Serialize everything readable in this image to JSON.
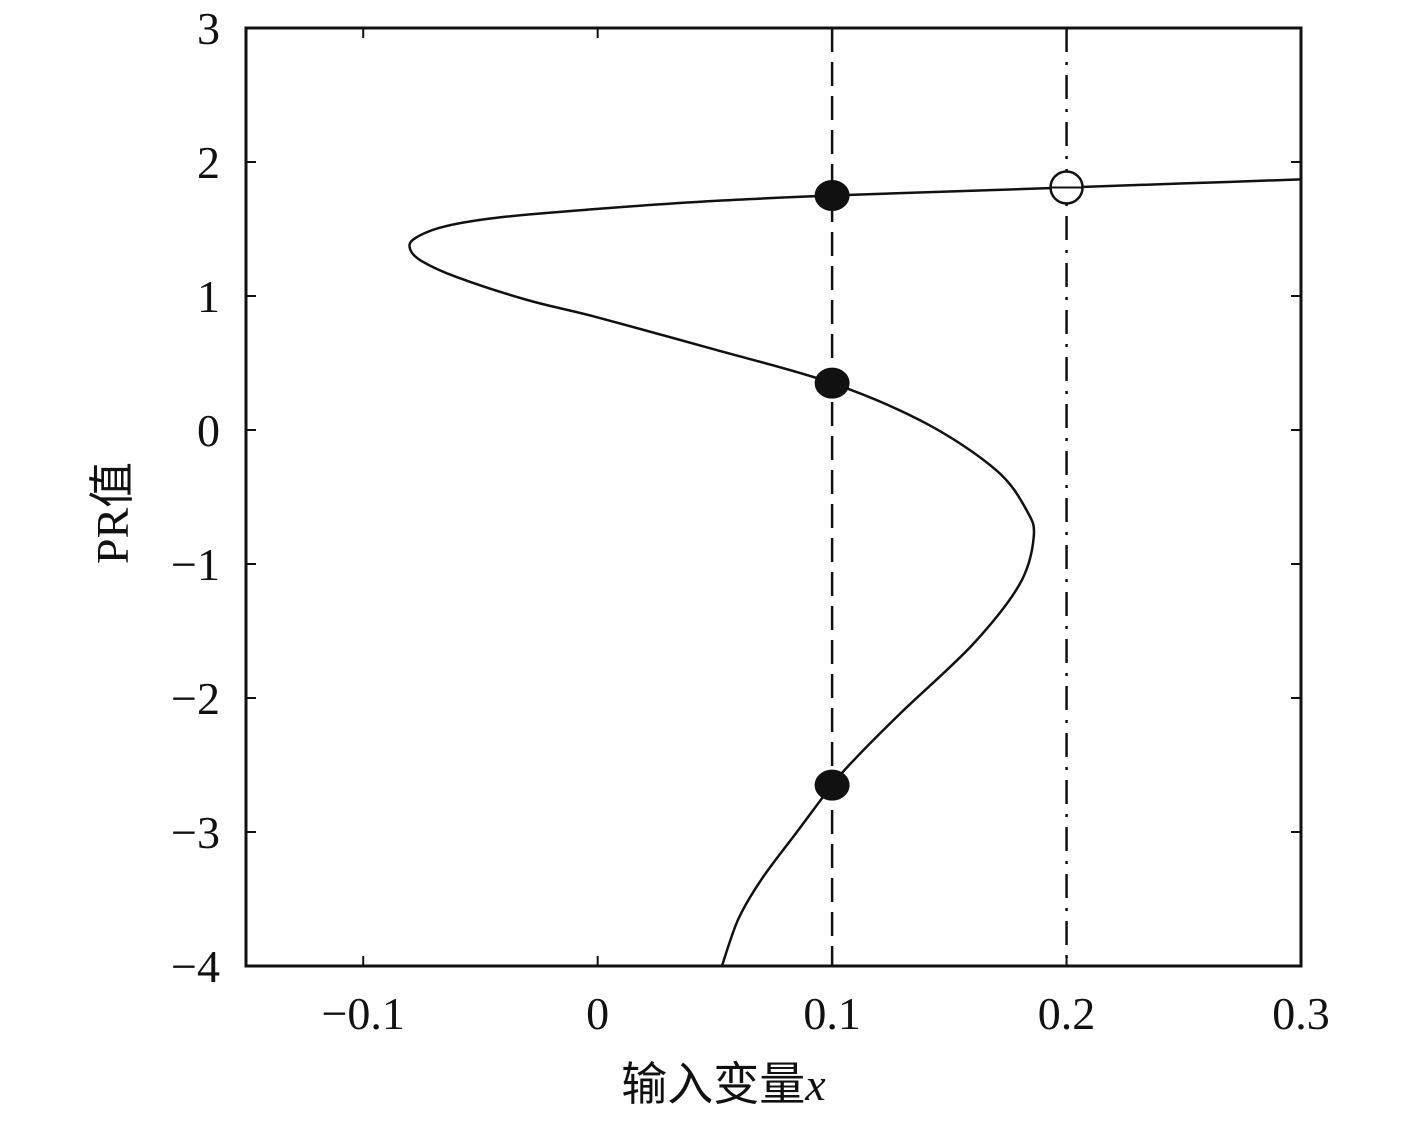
{
  "chart_data": {
    "type": "line",
    "title": "",
    "xlabel": "输入变量",
    "xlabel_var": "x",
    "ylabel": "PR值",
    "xlim": [
      -0.15,
      0.3
    ],
    "ylim": [
      -4,
      3
    ],
    "x_ticks": [
      -0.1,
      0,
      0.1,
      0.2,
      0.3
    ],
    "x_tick_labels": [
      "−0.1",
      "0",
      "0.1",
      "0.2",
      "0.3"
    ],
    "y_ticks": [
      -4,
      -3,
      -2,
      -1,
      0,
      1,
      2,
      3
    ],
    "y_tick_labels": [
      "−4",
      "−3",
      "−2",
      "−1",
      "0",
      "1",
      "2",
      "3"
    ],
    "grid": false,
    "series": [
      {
        "style": "solid",
        "x": [
          0.3,
          0.25,
          0.2,
          0.15,
          0.1,
          0.05,
          0.0,
          -0.04,
          -0.065,
          -0.078,
          -0.08,
          -0.075,
          -0.06,
          -0.03,
          0.0,
          0.05,
          0.1,
          0.14,
          0.17,
          0.183,
          0.186,
          0.18,
          0.16,
          0.13,
          0.11,
          0.1,
          0.085,
          0.07,
          0.06,
          0.053
        ],
        "y": [
          1.87,
          1.84,
          1.81,
          1.78,
          1.75,
          1.71,
          1.65,
          1.59,
          1.52,
          1.43,
          1.35,
          1.26,
          1.14,
          0.97,
          0.84,
          0.6,
          0.35,
          0.05,
          -0.3,
          -0.6,
          -0.8,
          -1.15,
          -1.6,
          -2.1,
          -2.45,
          -2.65,
          -3.0,
          -3.35,
          -3.65,
          -4.0
        ]
      }
    ],
    "vertical_lines": [
      {
        "x": 0.1,
        "style": "dashed"
      },
      {
        "x": 0.2,
        "style": "dash-dot"
      }
    ],
    "markers": [
      {
        "x": 0.1,
        "y": 1.75,
        "type": "filled"
      },
      {
        "x": 0.1,
        "y": 0.35,
        "type": "filled"
      },
      {
        "x": 0.1,
        "y": -2.65,
        "type": "filled"
      },
      {
        "x": 0.2,
        "y": 1.81,
        "type": "open"
      }
    ]
  }
}
